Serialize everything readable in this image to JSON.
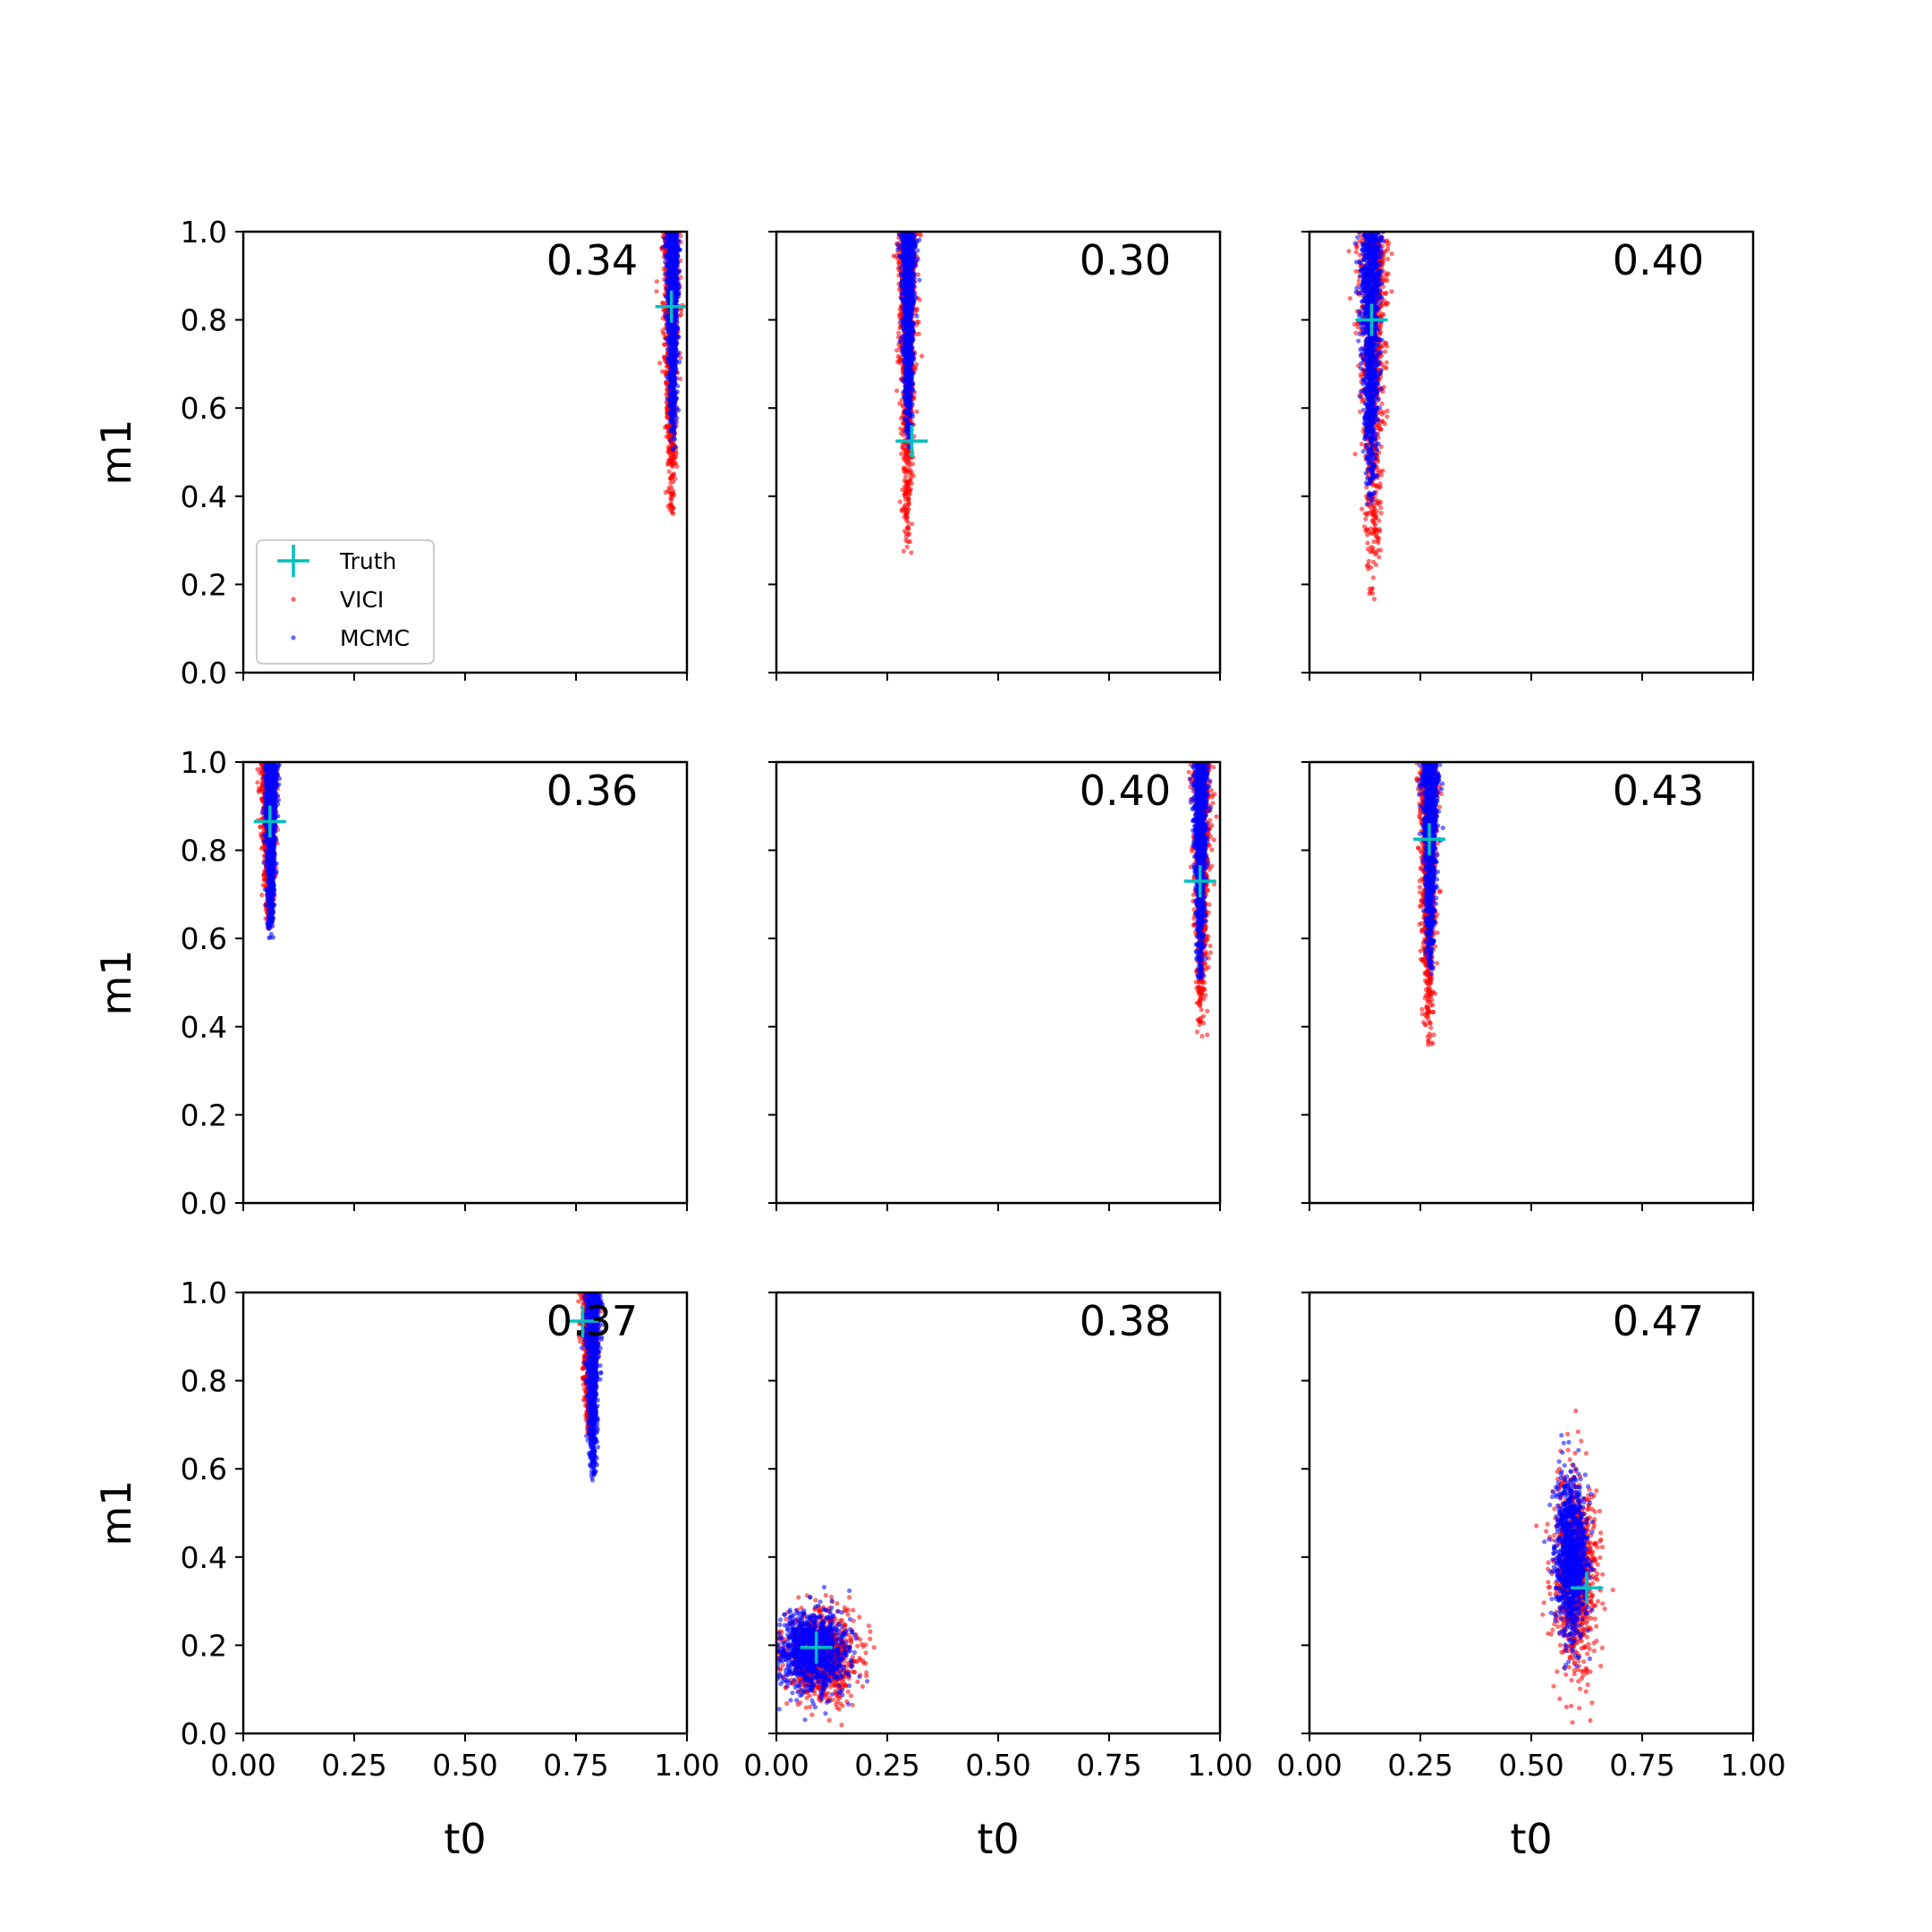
{
  "figure": {
    "xlabel": "t0",
    "ylabel": "m1",
    "xticks": [
      "0.00",
      "0.25",
      "0.50",
      "0.75",
      "1.00"
    ],
    "yticks": [
      "0.0",
      "0.2",
      "0.4",
      "0.6",
      "0.8",
      "1.0"
    ],
    "legend": {
      "placement": "lower-left of top-left panel",
      "entries": [
        "Truth",
        "VICI",
        "MCMC"
      ]
    },
    "colors": {
      "truth": "#00bfbf",
      "vici": "#ff0000",
      "mcmc": "#0000ff"
    }
  },
  "chart_data": [
    {
      "type": "scatter",
      "score": "0.34",
      "xlim": [
        0,
        1
      ],
      "ylim": [
        0,
        1
      ],
      "truth": [
        0.965,
        0.83
      ],
      "vici": {
        "cx": 0.965,
        "sx": 0.009,
        "y": [
          0.33,
          1.0
        ]
      },
      "mcmc": {
        "cx": 0.968,
        "sx": 0.007,
        "y": [
          0.5,
          1.0
        ]
      }
    },
    {
      "type": "scatter",
      "score": "0.30",
      "xlim": [
        0,
        1
      ],
      "ylim": [
        0,
        1
      ],
      "truth": [
        0.305,
        0.525
      ],
      "vici": {
        "cx": 0.295,
        "sx": 0.011,
        "y": [
          0.24,
          1.0
        ]
      },
      "mcmc": {
        "cx": 0.297,
        "sx": 0.008,
        "y": [
          0.5,
          1.0
        ]
      }
    },
    {
      "type": "scatter",
      "score": "0.40",
      "xlim": [
        0,
        1
      ],
      "ylim": [
        0,
        1
      ],
      "truth": [
        0.14,
        0.8
      ],
      "vici": {
        "cx": 0.142,
        "sx": 0.017,
        "y": [
          0.16,
          1.0
        ]
      },
      "mcmc": {
        "cx": 0.138,
        "sx": 0.012,
        "y": [
          0.37,
          1.0
        ]
      }
    },
    {
      "type": "scatter",
      "score": "0.36",
      "xlim": [
        0,
        1
      ],
      "ylim": [
        0,
        1
      ],
      "truth": [
        0.06,
        0.865
      ],
      "vici": {
        "cx": 0.058,
        "sx": 0.009,
        "y": [
          0.61,
          1.0
        ]
      },
      "mcmc": {
        "cx": 0.062,
        "sx": 0.007,
        "y": [
          0.6,
          1.0
        ]
      }
    },
    {
      "type": "scatter",
      "score": "0.40",
      "xlim": [
        0,
        1
      ],
      "ylim": [
        0,
        1
      ],
      "truth": [
        0.955,
        0.73
      ],
      "vici": {
        "cx": 0.958,
        "sx": 0.01,
        "y": [
          0.36,
          1.0
        ]
      },
      "mcmc": {
        "cx": 0.956,
        "sx": 0.008,
        "y": [
          0.49,
          1.0
        ]
      }
    },
    {
      "type": "scatter",
      "score": "0.43",
      "xlim": [
        0,
        1
      ],
      "ylim": [
        0,
        1
      ],
      "truth": [
        0.27,
        0.825
      ],
      "vici": {
        "cx": 0.268,
        "sx": 0.011,
        "y": [
          0.34,
          1.0
        ]
      },
      "mcmc": {
        "cx": 0.272,
        "sx": 0.009,
        "y": [
          0.51,
          1.0
        ]
      }
    },
    {
      "type": "scatter",
      "score": "0.37",
      "xlim": [
        0,
        1
      ],
      "ylim": [
        0,
        1
      ],
      "truth": [
        0.765,
        0.935
      ],
      "vici": {
        "cx": 0.78,
        "sx": 0.009,
        "y": [
          0.66,
          1.0
        ]
      },
      "mcmc": {
        "cx": 0.788,
        "sx": 0.008,
        "y": [
          0.57,
          1.0
        ]
      }
    },
    {
      "type": "scatter",
      "score": "0.38",
      "xlim": [
        0,
        1
      ],
      "ylim": [
        0,
        1
      ],
      "truth": [
        0.09,
        0.195
      ],
      "vici": {
        "cx": 0.1,
        "sx": 0.04,
        "cy": 0.175,
        "sy": 0.05
      },
      "mcmc": {
        "cx": 0.08,
        "sx": 0.04,
        "cy": 0.185,
        "sy": 0.045
      }
    },
    {
      "type": "scatter",
      "score": "0.47",
      "xlim": [
        0,
        1
      ],
      "ylim": [
        0,
        1
      ],
      "truth": [
        0.625,
        0.33
      ],
      "vici": {
        "cx": 0.6,
        "sx": 0.025,
        "cy": 0.36,
        "sy": 0.11
      },
      "mcmc": {
        "cx": 0.59,
        "sx": 0.017,
        "cy": 0.4,
        "sy": 0.085
      }
    }
  ]
}
